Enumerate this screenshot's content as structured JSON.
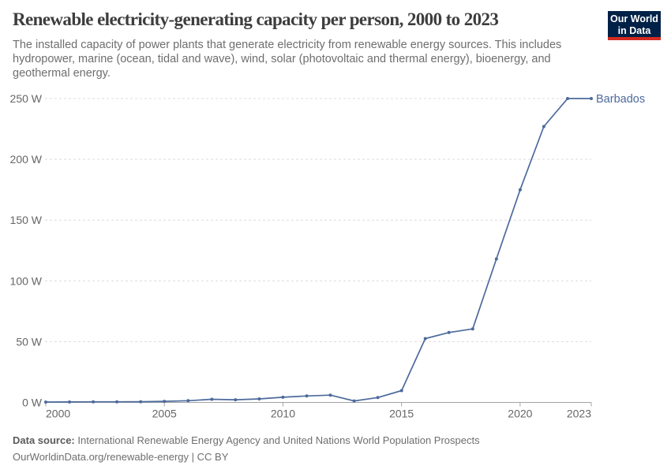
{
  "header": {
    "title": "Renewable electricity-generating capacity per person, 2000 to 2023",
    "subtitle_lines": [
      "The installed capacity of power plants that generate electricity from renewable energy sources. This includes",
      "hydropower, marine (ocean, tidal and wave), wind, solar (photovoltaic and thermal energy), bioenergy, and",
      "geothermal energy."
    ]
  },
  "logo": {
    "line1": "Our World",
    "line2": "in Data",
    "bg_color": "#002147",
    "accent_color": "#d42b21"
  },
  "chart_data": {
    "type": "line",
    "title": "Renewable electricity-generating capacity per person, 2000 to 2023",
    "unit": "W",
    "x": [
      2000,
      2001,
      2002,
      2003,
      2004,
      2005,
      2006,
      2007,
      2008,
      2009,
      2010,
      2011,
      2012,
      2013,
      2014,
      2015,
      2016,
      2017,
      2018,
      2019,
      2020,
      2021,
      2022,
      2023
    ],
    "series": [
      {
        "name": "Barbados",
        "color": "#4C6A9C",
        "values": [
          0.3,
          0.4,
          0.5,
          0.5,
          0.6,
          0.9,
          1.4,
          2.6,
          2.2,
          2.9,
          4.3,
          5.3,
          6.0,
          1.2,
          4.0,
          9.7,
          52.5,
          57.5,
          60.5,
          118,
          175,
          227,
          250,
          250
        ]
      }
    ],
    "xlim": [
      2000,
      2023
    ],
    "ylim": [
      0,
      250
    ],
    "y_ticks": [
      0,
      50,
      100,
      150,
      200,
      250
    ],
    "y_tick_labels": [
      "0 W",
      "50 W",
      "100 W",
      "150 W",
      "200 W",
      "250 W"
    ],
    "x_ticks": [
      2000,
      2005,
      2010,
      2015,
      2020,
      2023
    ],
    "x_tick_labels": [
      "2000",
      "2005",
      "2010",
      "2015",
      "2020",
      "2023"
    ],
    "grid": "dashed-horizontal",
    "legend_position": "end-of-line-label"
  },
  "footer": {
    "datasource_label": "Data source:",
    "datasource_text": " International Renewable Energy Agency and United Nations World Population Prospects",
    "link_line": "OurWorldinData.org/renewable-energy | CC BY"
  },
  "colors": {
    "line": "#4C6A9C",
    "grid": "#dcdcdc",
    "axis": "#a3a3a3",
    "tick_text": "#666666"
  }
}
